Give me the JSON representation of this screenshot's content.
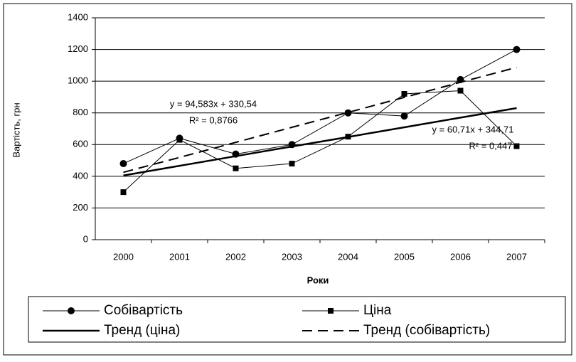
{
  "chart_data": {
    "type": "line",
    "x_label": "Роки",
    "y_label": "Вартість, грн",
    "categories": [
      "2000",
      "2001",
      "2002",
      "2003",
      "2004",
      "2005",
      "2006",
      "2007"
    ],
    "series": [
      {
        "name": "Собівартість",
        "color": "#000000",
        "marker": "circle",
        "style": "solid",
        "values": [
          480,
          640,
          540,
          600,
          800,
          780,
          1010,
          1200
        ]
      },
      {
        "name": "Ціна",
        "color": "#000000",
        "marker": "square",
        "style": "solid",
        "values": [
          300,
          630,
          450,
          480,
          650,
          920,
          940,
          590
        ]
      },
      {
        "name": "Тренд (ціна)",
        "color": "#000000",
        "marker": "none",
        "style": "thick",
        "values": [
          405,
          466,
          527,
          588,
          648,
          709,
          770,
          830
        ]
      },
      {
        "name": "Тренд (собівартість)",
        "color": "#000000",
        "marker": "none",
        "style": "dashed",
        "values": [
          425,
          519,
          614,
          709,
          803,
          898,
          993,
          1087
        ]
      }
    ],
    "annotations": [
      "y = 94,583x + 330,54",
      "R² = 0,8766",
      "y = 60,71x + 344,71",
      "R² = 0,447"
    ],
    "ylim": [
      0,
      1400
    ],
    "yticks": [
      0,
      200,
      400,
      600,
      800,
      1000,
      1200,
      1400
    ],
    "grid": true,
    "legend": "bottom"
  }
}
